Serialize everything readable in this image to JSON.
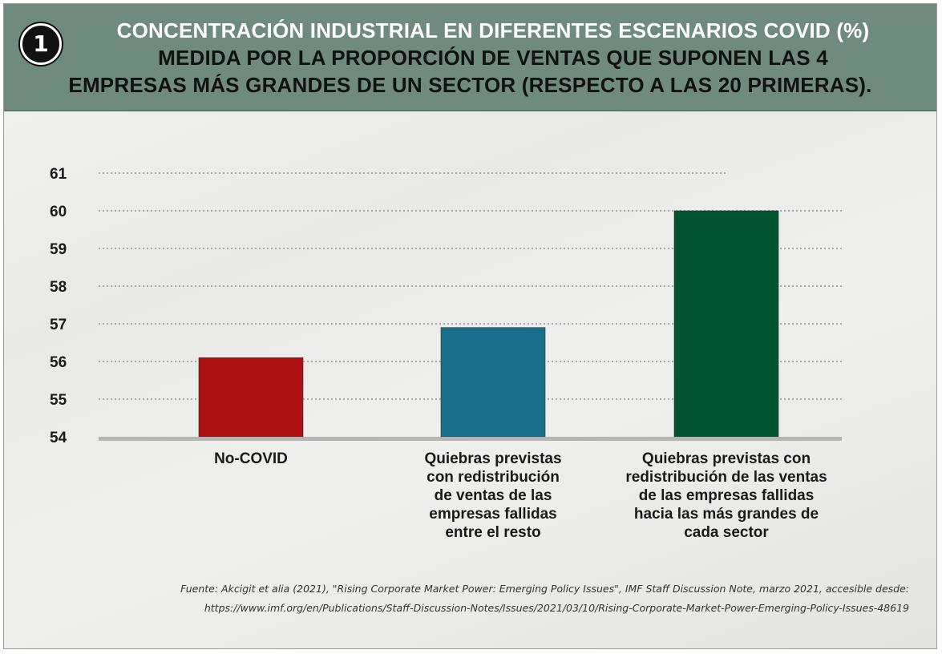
{
  "badge_number": "1",
  "title_lines": [
    "CONCENTRACIÓN INDUSTRIAL EN DIFERENTES ESCENARIOS COVID (%)",
    "MEDIDA POR LA PROPORCIÓN DE VENTAS QUE SUPONEN LAS 4",
    "EMPRESAS MÁS GRANDES DE UN SECTOR (RESPECTO A LAS 20 PRIMERAS)."
  ],
  "source_lines": [
    "Fuente: Akcigit et alia (2021), \"Rising Corporate Market Power: Emerging Policy Issues\", IMF Staff Discussion Note, marzo 2021, accesible desde:",
    "https://www.imf.org/en/Publications/Staff-Discussion-Notes/Issues/2021/03/10/Rising-Corporate-Market-Power-Emerging-Policy-Issues-48619"
  ],
  "chart_data": {
    "type": "bar",
    "categories": [
      "No-COVID",
      "Quiebras previstas\ncon redistribución\nde ventas de las\nempresas fallidas\nentre el resto",
      "Quiebras previstas con\nredistribución de las ventas\nde las empresas fallidas\nhacia las más grandes de\ncada sector"
    ],
    "values": [
      56.1,
      56.9,
      60.0
    ],
    "colors": [
      "#ad1111",
      "#176f8c",
      "#005530"
    ],
    "ylim": [
      54,
      61
    ],
    "yticks": [
      54,
      55,
      56,
      57,
      58,
      59,
      60,
      61
    ],
    "grid": true,
    "xlabel": "",
    "ylabel": ""
  }
}
